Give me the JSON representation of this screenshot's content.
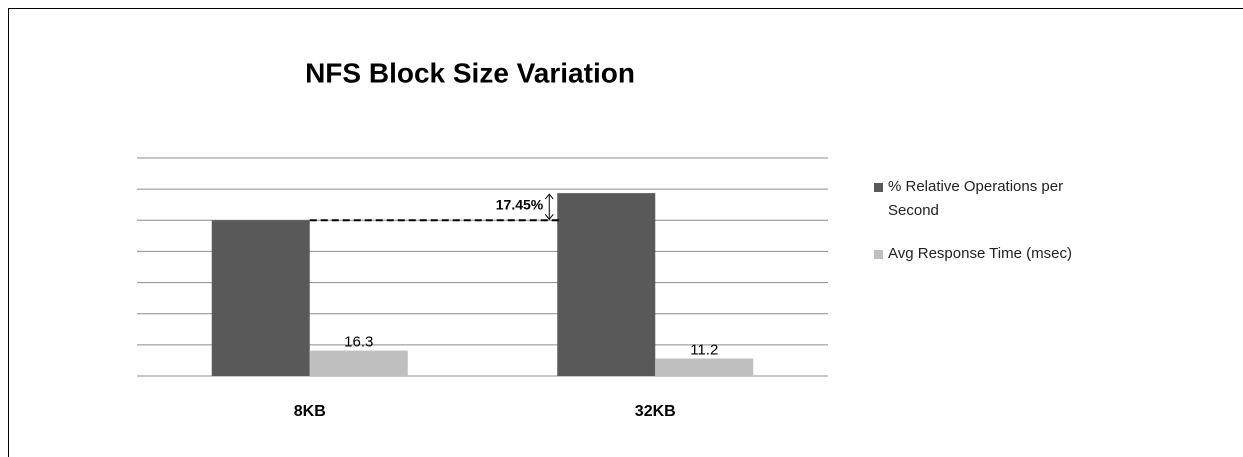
{
  "chart_data": {
    "type": "bar",
    "title": "NFS Block Size Variation",
    "categories": [
      "8KB",
      "32KB"
    ],
    "series": [
      {
        "name": "% Relative Operations per Second",
        "color": "#595959",
        "values": [
          100,
          117.45
        ]
      },
      {
        "name": "Avg Response Time (msec)",
        "color": "#bfbfbf",
        "values": [
          16.3,
          11.2
        ]
      }
    ],
    "annotation": "17.45%",
    "ylim": [
      0,
      140
    ],
    "yticks": [
      0,
      20,
      40,
      60,
      80,
      100,
      120,
      140
    ],
    "grid": true,
    "legend": "right"
  }
}
